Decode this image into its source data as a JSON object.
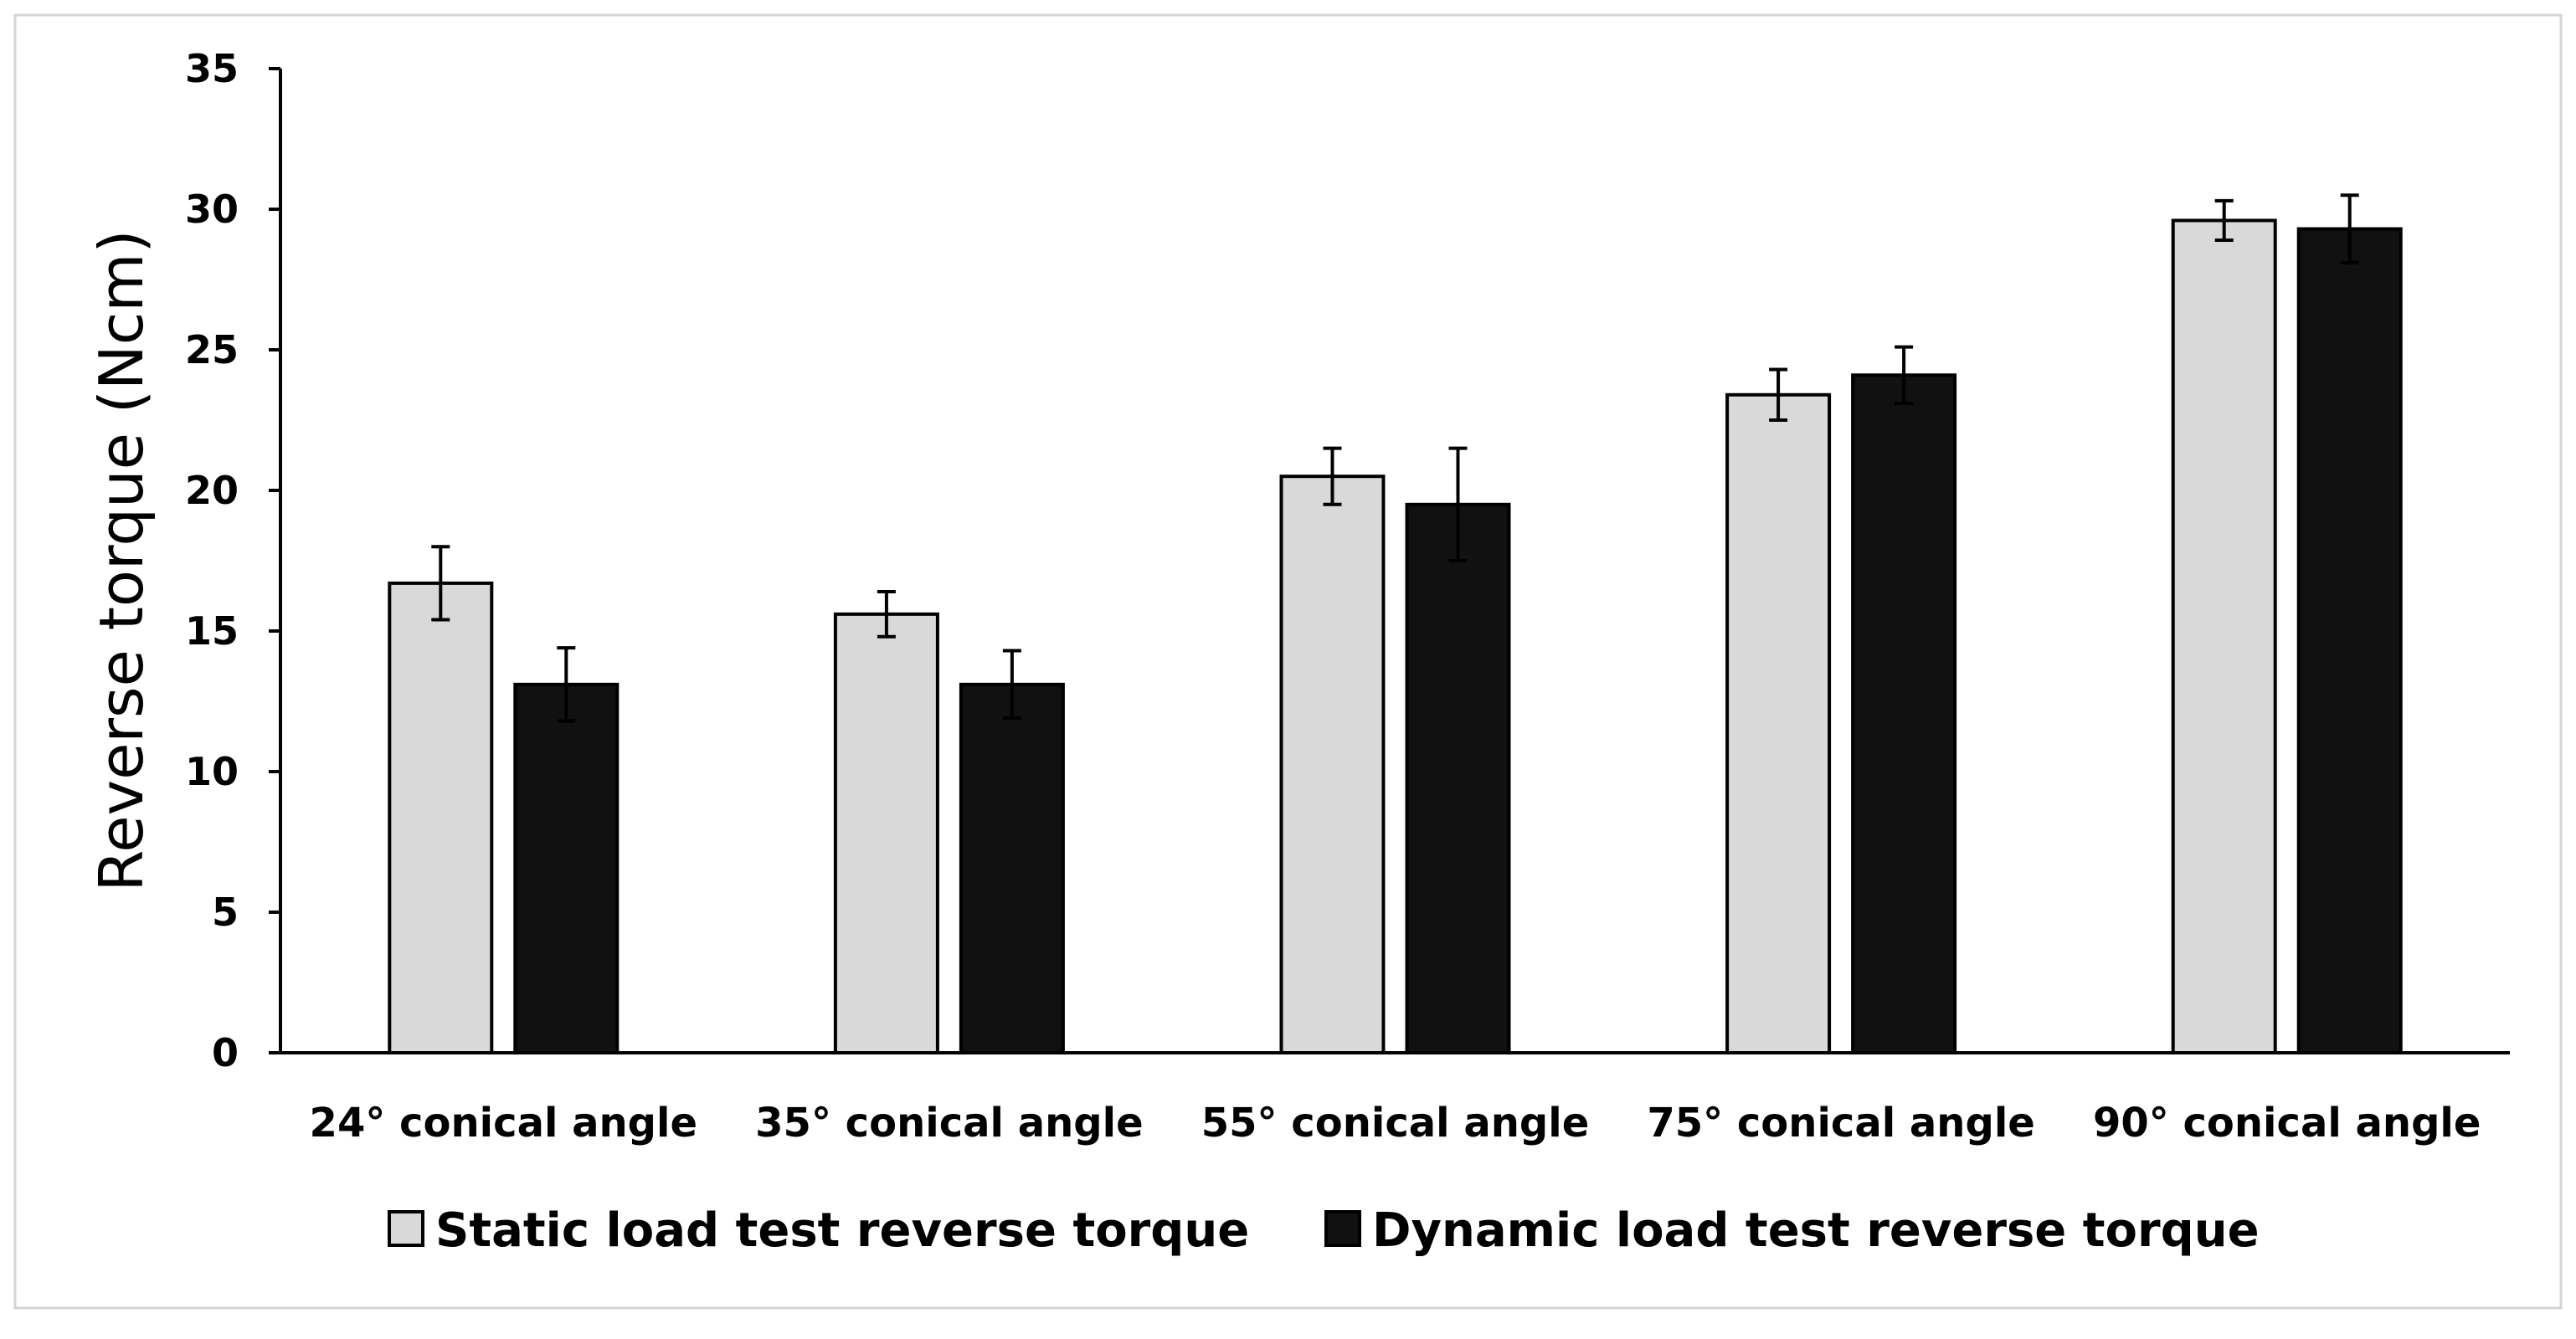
{
  "chart_data": {
    "type": "bar",
    "title": "",
    "xlabel": "",
    "ylabel": "Reverse torque (Ncm)",
    "ylim": [
      0,
      35
    ],
    "yticks": [
      0,
      5,
      10,
      15,
      20,
      25,
      30,
      35
    ],
    "grid": false,
    "legend_position": "bottom",
    "categories": [
      "24° conical angle",
      "35° conical angle",
      "55° conical angle",
      "75° conical angle",
      "90° conical angle"
    ],
    "series": [
      {
        "name": "Static load test reverse torque",
        "color": "#d9d9d9",
        "values": [
          16.7,
          15.6,
          20.5,
          23.4,
          29.6
        ],
        "errors": [
          1.3,
          0.8,
          1.0,
          0.9,
          0.7
        ]
      },
      {
        "name": "Dynamic load test reverse torque",
        "color": "#111111",
        "values": [
          13.1,
          13.1,
          19.5,
          24.1,
          29.3
        ],
        "errors": [
          1.3,
          1.2,
          2.0,
          1.0,
          1.2
        ]
      }
    ]
  }
}
